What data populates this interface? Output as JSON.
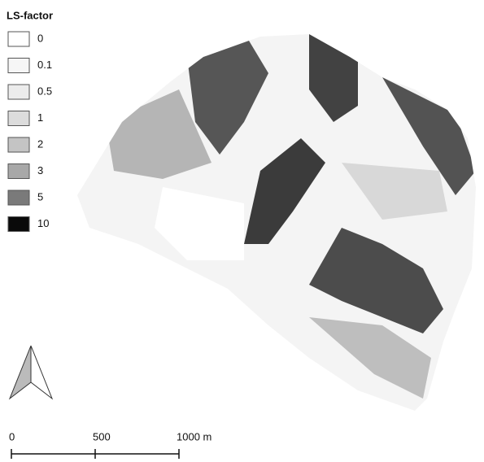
{
  "legend": {
    "title": "LS-factor",
    "items": [
      {
        "label": "0",
        "color": "#ffffff"
      },
      {
        "label": "0.1",
        "color": "#f6f6f6"
      },
      {
        "label": "0.5",
        "color": "#ececec"
      },
      {
        "label": "1",
        "color": "#dcdcdc"
      },
      {
        "label": "2",
        "color": "#c4c4c4"
      },
      {
        "label": "3",
        "color": "#a8a8a8"
      },
      {
        "label": "5",
        "color": "#7a7a7a"
      },
      {
        "label": "10",
        "color": "#0a0a0a"
      }
    ]
  },
  "scale_bar": {
    "labels": [
      "0",
      "500",
      "1000 m"
    ]
  }
}
